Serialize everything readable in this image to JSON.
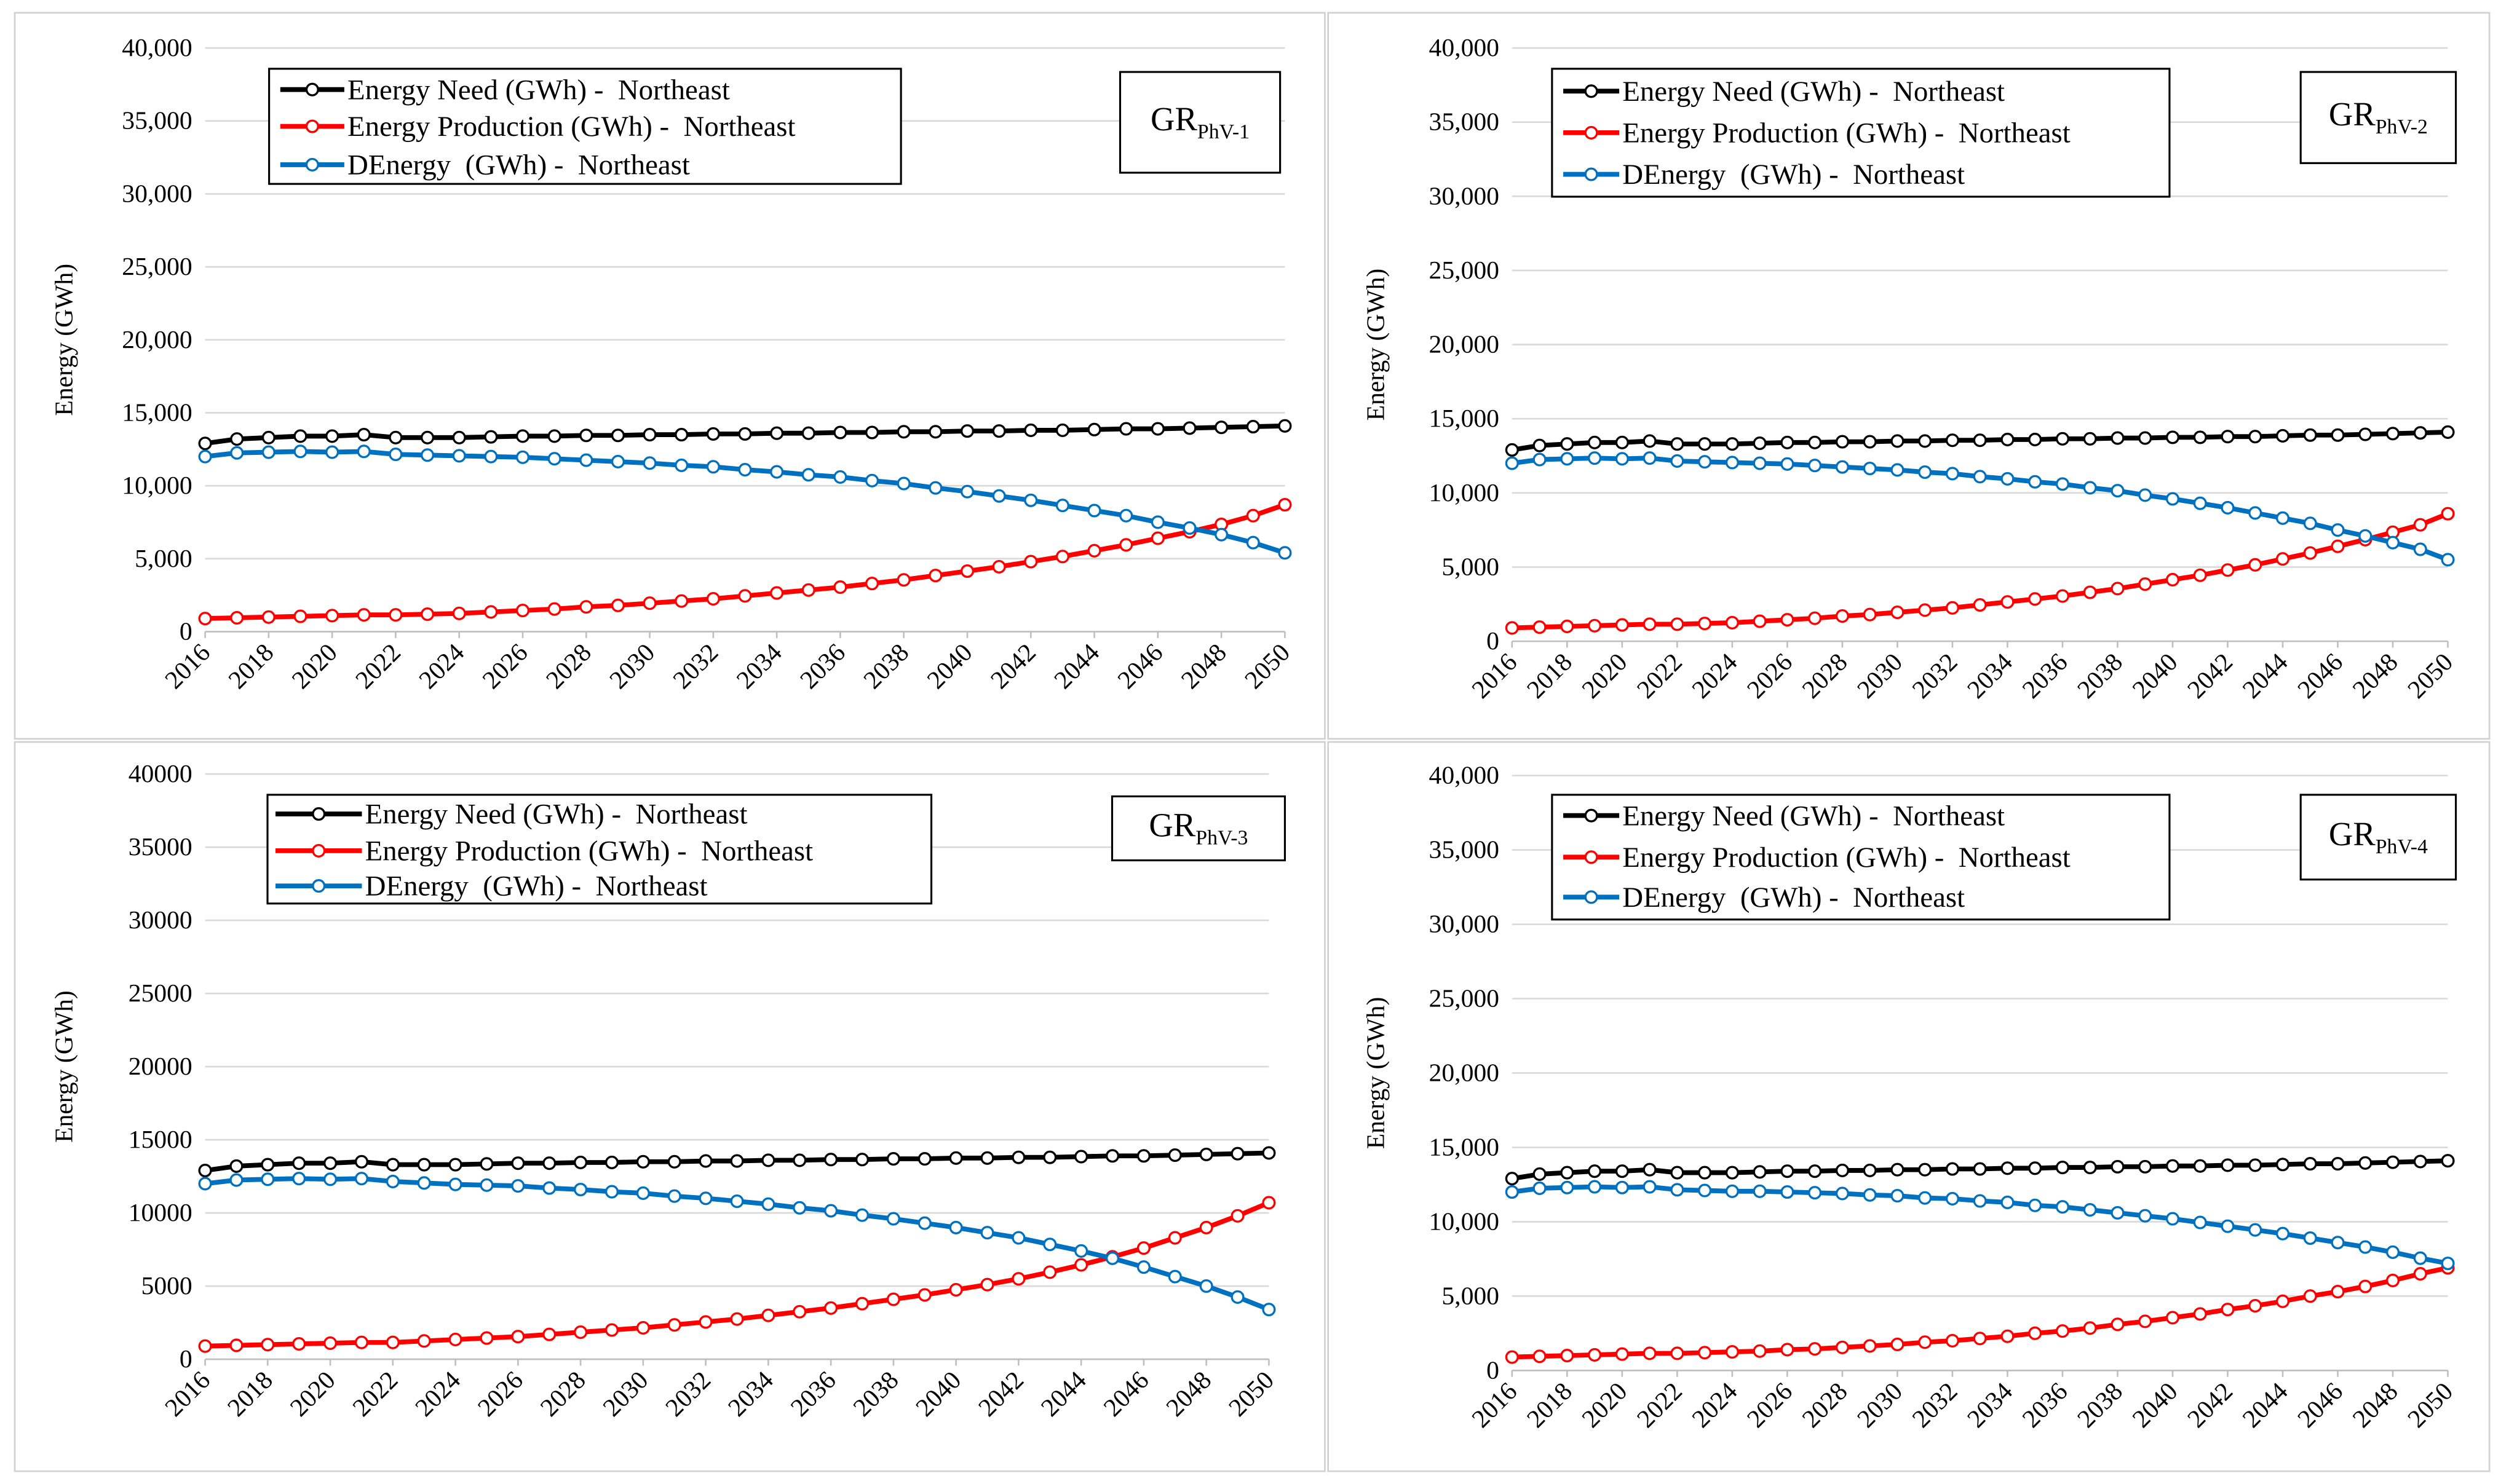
{
  "chart_data": [
    {
      "type": "line",
      "label_main": "GR",
      "label_sub": "PhV-1",
      "y_label": "Energy (GWh)",
      "x": [
        2016,
        2017,
        2018,
        2019,
        2020,
        2021,
        2022,
        2023,
        2024,
        2025,
        2026,
        2027,
        2028,
        2029,
        2030,
        2031,
        2032,
        2033,
        2034,
        2035,
        2036,
        2037,
        2038,
        2039,
        2040,
        2041,
        2042,
        2043,
        2044,
        2045,
        2046,
        2047,
        2048,
        2049,
        2050
      ],
      "xlim": [
        2016,
        2050
      ],
      "xticks": [
        2016,
        2018,
        2020,
        2022,
        2024,
        2026,
        2028,
        2030,
        2032,
        2034,
        2036,
        2038,
        2040,
        2042,
        2044,
        2046,
        2048,
        2050
      ],
      "ylim": [
        0,
        40000
      ],
      "yticks": [
        0,
        {
          "value": 5000,
          "label": "5,000"
        },
        {
          "value": 10000,
          "label": "10,000"
        },
        {
          "value": 15000,
          "label": "15,000"
        },
        {
          "value": 20000,
          "label": "20,000"
        },
        {
          "value": 25000,
          "label": "25,000"
        },
        {
          "value": 30000,
          "label": "30,000"
        },
        {
          "value": 35000,
          "label": "35,000"
        },
        {
          "value": 40000,
          "label": "40,000"
        }
      ],
      "grid": true,
      "series": [
        {
          "name": "Energy Need (GWh) -  Northeast",
          "color": "#000000",
          "values": [
            12900,
            13200,
            13300,
            13400,
            13400,
            13500,
            13300,
            13300,
            13300,
            13350,
            13400,
            13400,
            13450,
            13450,
            13500,
            13500,
            13550,
            13550,
            13600,
            13600,
            13650,
            13650,
            13700,
            13700,
            13750,
            13750,
            13800,
            13800,
            13850,
            13900,
            13900,
            13950,
            14000,
            14050,
            14100
          ]
        },
        {
          "name": "Energy Production (GWh) -  Northeast",
          "color": "#ff0000",
          "values": [
            900,
            950,
            1000,
            1050,
            1100,
            1150,
            1150,
            1200,
            1250,
            1350,
            1450,
            1550,
            1700,
            1800,
            1950,
            2100,
            2250,
            2450,
            2650,
            2850,
            3050,
            3300,
            3550,
            3850,
            4150,
            4450,
            4800,
            5150,
            5550,
            5950,
            6400,
            6850,
            7350,
            7950,
            8700
          ]
        },
        {
          "name": "DEnergy  (GWh) -  Northeast",
          "color": "#0070c0",
          "values": [
            12000,
            12250,
            12300,
            12350,
            12300,
            12350,
            12150,
            12100,
            12050,
            12000,
            11950,
            11850,
            11750,
            11650,
            11550,
            11400,
            11300,
            11100,
            10950,
            10750,
            10600,
            10350,
            10150,
            9850,
            9600,
            9300,
            9000,
            8650,
            8300,
            7950,
            7500,
            7100,
            6650,
            6100,
            5400
          ]
        }
      ]
    },
    {
      "type": "line",
      "label_main": "GR",
      "label_sub": "PhV-2",
      "y_label": "Energy (GWh)",
      "x": [
        2016,
        2017,
        2018,
        2019,
        2020,
        2021,
        2022,
        2023,
        2024,
        2025,
        2026,
        2027,
        2028,
        2029,
        2030,
        2031,
        2032,
        2033,
        2034,
        2035,
        2036,
        2037,
        2038,
        2039,
        2040,
        2041,
        2042,
        2043,
        2044,
        2045,
        2046,
        2047,
        2048,
        2049,
        2050
      ],
      "xlim": [
        2016,
        2050
      ],
      "xticks": [
        2016,
        2018,
        2020,
        2022,
        2024,
        2026,
        2028,
        2030,
        2032,
        2034,
        2036,
        2038,
        2040,
        2042,
        2044,
        2046,
        2048,
        2050
      ],
      "ylim": [
        0,
        40000
      ],
      "yticks": [
        0,
        {
          "value": 5000,
          "label": "5,000"
        },
        {
          "value": 10000,
          "label": "10,000"
        },
        {
          "value": 15000,
          "label": "15,000"
        },
        {
          "value": 20000,
          "label": "20,000"
        },
        {
          "value": 25000,
          "label": "25,000"
        },
        {
          "value": 30000,
          "label": "30,000"
        },
        {
          "value": 35000,
          "label": "35,000"
        },
        {
          "value": 40000,
          "label": "40,000"
        }
      ],
      "grid": true,
      "series": [
        {
          "name": "Energy Need (GWh) -  Northeast",
          "color": "#000000",
          "values": [
            12900,
            13200,
            13300,
            13400,
            13400,
            13500,
            13300,
            13300,
            13300,
            13350,
            13400,
            13400,
            13450,
            13450,
            13500,
            13500,
            13550,
            13550,
            13600,
            13600,
            13650,
            13650,
            13700,
            13700,
            13750,
            13750,
            13800,
            13800,
            13850,
            13900,
            13900,
            13950,
            14000,
            14050,
            14100
          ]
        },
        {
          "name": "Energy Production (GWh) -  Northeast",
          "color": "#ff0000",
          "values": [
            900,
            950,
            1000,
            1050,
            1100,
            1150,
            1150,
            1200,
            1250,
            1350,
            1450,
            1550,
            1700,
            1800,
            1950,
            2100,
            2250,
            2450,
            2650,
            2850,
            3050,
            3300,
            3550,
            3850,
            4150,
            4450,
            4800,
            5150,
            5550,
            5950,
            6400,
            6850,
            7350,
            7850,
            8600
          ]
        },
        {
          "name": "DEnergy  (GWh) -  Northeast",
          "color": "#0070c0",
          "values": [
            12000,
            12250,
            12300,
            12350,
            12300,
            12350,
            12150,
            12100,
            12050,
            12000,
            11950,
            11850,
            11750,
            11650,
            11550,
            11400,
            11300,
            11100,
            10950,
            10750,
            10600,
            10350,
            10150,
            9850,
            9600,
            9300,
            9000,
            8650,
            8300,
            7950,
            7500,
            7100,
            6650,
            6200,
            5500
          ]
        }
      ]
    },
    {
      "type": "line",
      "label_main": "GR",
      "label_sub": "PhV-3",
      "y_label": "Energy (GWh)",
      "x": [
        2016,
        2017,
        2018,
        2019,
        2020,
        2021,
        2022,
        2023,
        2024,
        2025,
        2026,
        2027,
        2028,
        2029,
        2030,
        2031,
        2032,
        2033,
        2034,
        2035,
        2036,
        2037,
        2038,
        2039,
        2040,
        2041,
        2042,
        2043,
        2044,
        2045,
        2046,
        2047,
        2048,
        2049,
        2050
      ],
      "xlim": [
        2016,
        2050
      ],
      "xticks": [
        2016,
        2018,
        2020,
        2022,
        2024,
        2026,
        2028,
        2030,
        2032,
        2034,
        2036,
        2038,
        2040,
        2042,
        2044,
        2046,
        2048,
        2050
      ],
      "ylim": [
        0,
        40000
      ],
      "yticks": [
        0,
        5000,
        10000,
        15000,
        20000,
        25000,
        30000,
        35000,
        40000
      ],
      "grid": true,
      "series": [
        {
          "name": "Energy Need (GWh) -  Northeast",
          "color": "#000000",
          "values": [
            12900,
            13200,
            13300,
            13400,
            13400,
            13500,
            13300,
            13300,
            13300,
            13350,
            13400,
            13400,
            13450,
            13450,
            13500,
            13500,
            13550,
            13550,
            13600,
            13600,
            13650,
            13650,
            13700,
            13700,
            13750,
            13750,
            13800,
            13800,
            13850,
            13900,
            13900,
            13950,
            14000,
            14050,
            14100
          ]
        },
        {
          "name": "Energy Production (GWh) -  Northeast",
          "color": "#ff0000",
          "values": [
            900,
            950,
            1000,
            1050,
            1100,
            1150,
            1150,
            1250,
            1350,
            1450,
            1550,
            1700,
            1850,
            2000,
            2150,
            2350,
            2550,
            2750,
            3000,
            3250,
            3500,
            3800,
            4100,
            4400,
            4750,
            5100,
            5500,
            5950,
            6450,
            7000,
            7600,
            8300,
            9000,
            9800,
            10700
          ]
        },
        {
          "name": "DEnergy  (GWh) -  Northeast",
          "color": "#0070c0",
          "values": [
            12000,
            12250,
            12300,
            12350,
            12300,
            12350,
            12150,
            12050,
            11950,
            11900,
            11850,
            11700,
            11600,
            11450,
            11350,
            11150,
            11000,
            10800,
            10600,
            10350,
            10150,
            9850,
            9600,
            9300,
            9000,
            8650,
            8300,
            7850,
            7400,
            6900,
            6300,
            5650,
            5000,
            4250,
            3400
          ]
        }
      ]
    },
    {
      "type": "line",
      "label_main": "GR",
      "label_sub": "PhV-4",
      "y_label": "Energy (GWh)",
      "x": [
        2016,
        2017,
        2018,
        2019,
        2020,
        2021,
        2022,
        2023,
        2024,
        2025,
        2026,
        2027,
        2028,
        2029,
        2030,
        2031,
        2032,
        2033,
        2034,
        2035,
        2036,
        2037,
        2038,
        2039,
        2040,
        2041,
        2042,
        2043,
        2044,
        2045,
        2046,
        2047,
        2048,
        2049,
        2050
      ],
      "xlim": [
        2016,
        2050
      ],
      "xticks": [
        2016,
        2018,
        2020,
        2022,
        2024,
        2026,
        2028,
        2030,
        2032,
        2034,
        2036,
        2038,
        2040,
        2042,
        2044,
        2046,
        2048,
        2050
      ],
      "ylim": [
        0,
        40000
      ],
      "yticks": [
        0,
        {
          "value": 5000,
          "label": "5,000"
        },
        {
          "value": 10000,
          "label": "10,000"
        },
        {
          "value": 15000,
          "label": "15,000"
        },
        {
          "value": 20000,
          "label": "20,000"
        },
        {
          "value": 25000,
          "label": "25,000"
        },
        {
          "value": 30000,
          "label": "30,000"
        },
        {
          "value": 35000,
          "label": "35,000"
        },
        {
          "value": 40000,
          "label": "40,000"
        }
      ],
      "grid": true,
      "series": [
        {
          "name": "Energy Need (GWh) -  Northeast",
          "color": "#000000",
          "values": [
            12900,
            13200,
            13300,
            13400,
            13400,
            13500,
            13300,
            13300,
            13300,
            13350,
            13400,
            13400,
            13450,
            13450,
            13500,
            13500,
            13550,
            13550,
            13600,
            13600,
            13650,
            13650,
            13700,
            13700,
            13750,
            13750,
            13800,
            13800,
            13850,
            13900,
            13900,
            13950,
            14000,
            14050,
            14100
          ]
        },
        {
          "name": "Energy Production (GWh) -  Northeast",
          "color": "#ff0000",
          "values": [
            900,
            950,
            1000,
            1050,
            1100,
            1150,
            1150,
            1200,
            1250,
            1300,
            1400,
            1450,
            1550,
            1650,
            1750,
            1900,
            2000,
            2150,
            2300,
            2500,
            2650,
            2850,
            3100,
            3300,
            3550,
            3800,
            4100,
            4350,
            4650,
            5000,
            5300,
            5650,
            6050,
            6500,
            6900
          ]
        },
        {
          "name": "DEnergy  (GWh) -  Northeast",
          "color": "#0070c0",
          "values": [
            12000,
            12250,
            12300,
            12350,
            12300,
            12350,
            12150,
            12100,
            12050,
            12050,
            12000,
            11950,
            11900,
            11800,
            11750,
            11600,
            11550,
            11400,
            11300,
            11100,
            11000,
            10800,
            10600,
            10400,
            10200,
            9950,
            9700,
            9450,
            9200,
            8900,
            8600,
            8300,
            7950,
            7550,
            7200
          ]
        }
      ]
    }
  ]
}
